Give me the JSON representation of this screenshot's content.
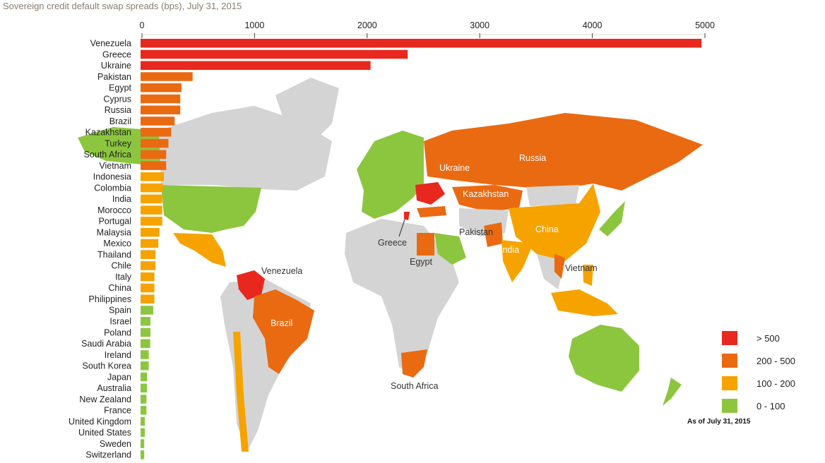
{
  "title": "Sovereign credit default swap spreads (bps), July 31, 2015",
  "colors": {
    "gt500": "#e8281e",
    "200_500": "#ea6a12",
    "100_200": "#f6a300",
    "0_100": "#8cc63f",
    "land": "#d4d4d4"
  },
  "chart_data": {
    "type": "bar",
    "orientation": "horizontal",
    "title": "Sovereign credit default swap spreads (bps), July 31, 2015",
    "xlim": [
      0,
      5000
    ],
    "xticks": [
      0,
      1000,
      2000,
      3000,
      4000,
      5000
    ],
    "categories": [
      "Venezuela",
      "Greece",
      "Ukraine",
      "Pakistan",
      "Egypt",
      "Cyprus",
      "Russia",
      "Brazil",
      "Kazakhstan",
      "Turkey",
      "South Africa",
      "Vietnam",
      "Indonesia",
      "Colombia",
      "India",
      "Morocco",
      "Portugal",
      "Malaysia",
      "Mexico",
      "Thailand",
      "Chile",
      "Italy",
      "China",
      "Philippines",
      "Spain",
      "Israel",
      "Poland",
      "Saudi Arabia",
      "Ireland",
      "South Korea",
      "Japan",
      "Australia",
      "New Zealand",
      "France",
      "United Kingdom",
      "United States",
      "Sweden",
      "Switzerland"
    ],
    "values": [
      4970,
      2360,
      2030,
      450,
      350,
      340,
      340,
      290,
      260,
      235,
      215,
      215,
      195,
      185,
      180,
      180,
      180,
      155,
      145,
      120,
      120,
      110,
      110,
      110,
      100,
      75,
      75,
      73,
      60,
      60,
      45,
      45,
      40,
      40,
      25,
      25,
      20,
      20
    ],
    "bins": [
      "gt500",
      "gt500",
      "gt500",
      "200_500",
      "200_500",
      "200_500",
      "200_500",
      "200_500",
      "200_500",
      "200_500",
      "200_500",
      "200_500",
      "100_200",
      "100_200",
      "100_200",
      "100_200",
      "100_200",
      "100_200",
      "100_200",
      "100_200",
      "100_200",
      "100_200",
      "100_200",
      "100_200",
      "0_100",
      "0_100",
      "0_100",
      "0_100",
      "0_100",
      "0_100",
      "0_100",
      "0_100",
      "0_100",
      "0_100",
      "0_100",
      "0_100",
      "0_100",
      "0_100"
    ]
  },
  "map_labels": [
    "Russia",
    "Ukraine",
    "Kazakhstan",
    "China",
    "India",
    "Pakistan",
    "Egypt",
    "Greece",
    "Vietnam",
    "Venezuela",
    "Brazil",
    "South Africa"
  ],
  "legend": [
    {
      "label": "> 500",
      "bin": "gt500"
    },
    {
      "label": "200 - 500",
      "bin": "200_500"
    },
    {
      "label": "100 - 200",
      "bin": "100_200"
    },
    {
      "label": "0 - 100",
      "bin": "0_100"
    }
  ],
  "as_of": "As of July 31, 2015"
}
